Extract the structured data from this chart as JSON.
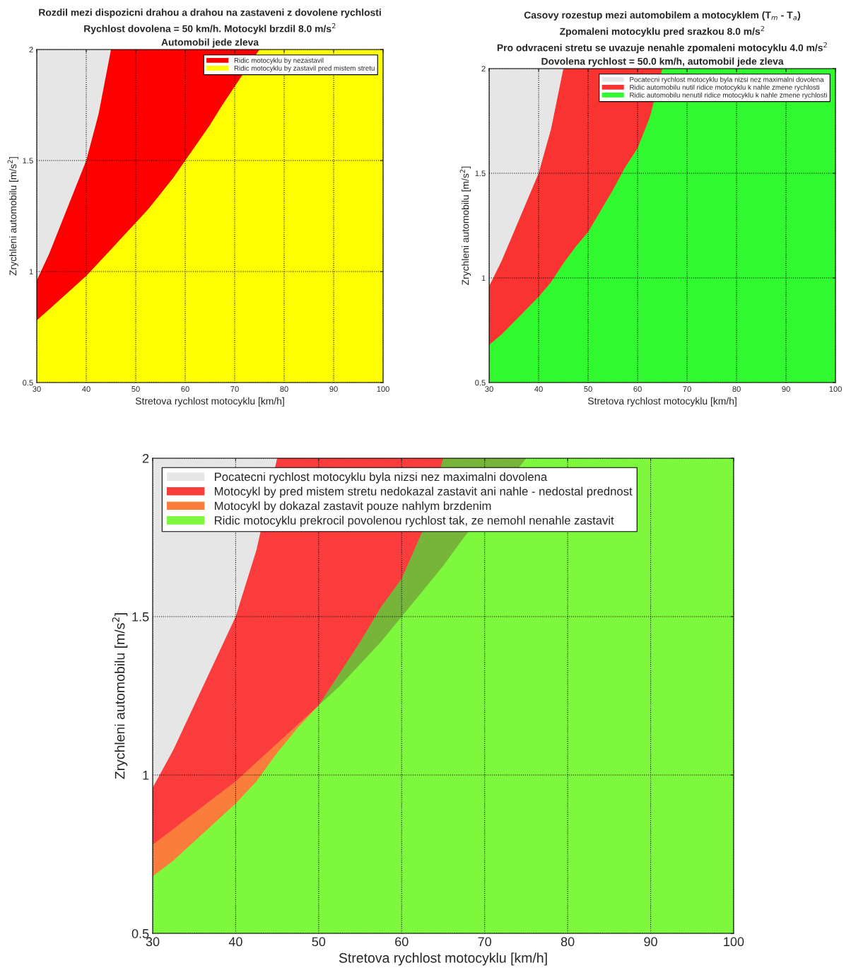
{
  "chart_data": [
    {
      "type": "area",
      "title": "Rozdil mezi dispozicni drahou a drahou na zastaveni z dovolene rychlosti\nRychlost dovolena = 50 km/h. Motocykl brzdil 8.0 m/s$^{2}$\nAutomobil jede zleva",
      "xlabel": "Stretova rychlost motocyklu [km/h]",
      "ylabel": "Zrychleni automobilu [m/s$^{2}$]",
      "x": [
        30,
        32.5,
        35,
        37.5,
        40,
        42.5,
        45,
        47.5,
        50,
        52.5,
        55,
        57.5,
        60,
        62.5,
        65,
        67.5,
        70,
        72.5,
        75,
        77.5,
        80,
        82.5,
        85,
        87.5,
        90,
        92.5,
        95,
        97.5,
        100
      ],
      "series": [
        {
          "color": "#e6e6e6",
          "values": [
            2,
            2,
            2,
            2,
            2,
            2,
            2,
            null,
            null,
            null,
            null,
            null,
            null,
            null,
            null,
            null,
            null,
            null,
            null,
            null,
            null,
            null,
            null,
            null,
            null,
            null,
            null,
            null,
            null
          ]
        },
        {
          "name": "Ridic motocyklu by nezastavil",
          "color": "#ff0000",
          "values": [
            0.96,
            1.08,
            1.22,
            1.36,
            1.5,
            1.71,
            2,
            2,
            2,
            2,
            2,
            2,
            2,
            2,
            2,
            2,
            2,
            2,
            2,
            null,
            null,
            null,
            null,
            null,
            null,
            null,
            null,
            null,
            null
          ]
        },
        {
          "name": "Ridic motocyklu by zastavil pred mistem stretu",
          "color": "#ffff00",
          "values": [
            0.78,
            0.83,
            0.88,
            0.93,
            0.98,
            1.04,
            1.1,
            1.16,
            1.22,
            1.28,
            1.35,
            1.42,
            1.5,
            1.58,
            1.66,
            1.75,
            null,
            null,
            2,
            2,
            2,
            2,
            2,
            2,
            2,
            2,
            2,
            2,
            2
          ]
        }
      ],
      "xlim": [
        30,
        100
      ],
      "ylim": [
        0.5,
        2
      ],
      "xticks": [
        30,
        40,
        50,
        60,
        70,
        80,
        90,
        100
      ],
      "yticks": [
        0.5,
        1,
        1.5,
        2
      ],
      "grid": true,
      "legend": "top right"
    },
    {
      "type": "area",
      "title": "Casovy rozestup mezi automobilem a motocyklem (T$_{m}$ - T$_{a}$)\nZpomaleni motocyklu pred srazkou 8.0 m/s$^{2}$\nPro odvraceni stretu se uvazuje nenahle zpomaleni motocyklu 4.0 m/s$^{2}$\nDovolena rychlost = 50.0 km/h, automobil jede zleva",
      "xlabel": "Stretova rychlost motocyklu [km/h]",
      "ylabel": "Zrychleni automobilu [m/s$^{2}$]",
      "x": [
        30,
        32.5,
        35,
        37.5,
        40,
        42.5,
        45,
        47.5,
        50,
        52.5,
        55,
        57.5,
        60,
        62.5,
        65,
        67.5,
        70,
        72.5,
        75,
        77.5,
        80,
        82.5,
        85,
        87.5,
        90,
        92.5,
        95,
        97.5,
        100
      ],
      "series": [
        {
          "name": "Pocatecni rychlost motocyklu byla nizsi nez maximalni dovolena",
          "color": "#e6e6e6",
          "values": [
            2,
            2,
            2,
            2,
            2,
            2,
            2,
            null,
            null,
            null,
            null,
            null,
            null,
            null,
            null,
            null,
            null,
            null,
            null,
            null,
            null,
            null,
            null,
            null,
            null,
            null,
            null,
            null,
            null
          ]
        },
        {
          "name": "Ridic automobilu nutil ridice motocyklu k nahle zmene rychlosti",
          "color": "#f93232",
          "values": [
            0.96,
            1.08,
            1.22,
            1.36,
            1.5,
            1.71,
            2,
            2,
            2,
            2,
            2,
            2,
            2,
            2,
            2,
            null,
            null,
            null,
            null,
            null,
            null,
            null,
            null,
            null,
            null,
            null,
            null,
            null,
            null
          ]
        },
        {
          "name": "Ridic automobilu nenutil ridice motocyklu k nahle zmene rychlosti",
          "color": "#30f930",
          "values": [
            0.68,
            0.73,
            0.79,
            0.85,
            0.91,
            0.98,
            1.07,
            1.15,
            1.22,
            1.32,
            1.42,
            1.53,
            1.62,
            1.77,
            2,
            2,
            2,
            2,
            2,
            2,
            2,
            2,
            2,
            2,
            2,
            2,
            2,
            2,
            2
          ]
        }
      ],
      "xlim": [
        30,
        100
      ],
      "ylim": [
        0.5,
        2
      ],
      "xticks": [
        30,
        40,
        50,
        60,
        70,
        80,
        90,
        100
      ],
      "yticks": [
        0.5,
        1,
        1.5,
        2
      ],
      "grid": true,
      "legend": "top right"
    },
    {
      "type": "area",
      "xlabel": "Stretova rychlost motocyklu [km/h]",
      "ylabel": "Zrychleni automobilu [m/s$^{2}$]",
      "x": [
        30,
        32.5,
        35,
        37.5,
        40,
        42.5,
        45,
        47.5,
        50,
        52.5,
        55,
        57.5,
        60,
        62.5,
        65,
        67.5,
        70,
        72.5,
        75,
        77.5,
        80,
        82.5,
        85,
        87.5,
        90,
        92.5,
        95,
        97.5,
        100
      ],
      "series": [
        {
          "name": "Pocatecni rychlost motocyklu byla nizsi nez maximalni dovolena",
          "color": "#e6e6e6",
          "values": [
            2,
            2,
            2,
            2,
            2,
            2,
            2,
            null,
            null,
            null,
            null,
            null,
            null,
            null,
            null,
            null,
            null,
            null,
            null,
            null,
            null,
            null,
            null,
            null,
            null,
            null,
            null,
            null,
            null
          ]
        },
        {
          "name": "Motocykl by pred mistem stretu nedokazal zastavit ani nahle - nedostal prednost",
          "color": "#fa3c3c",
          "values": [
            0.96,
            1.08,
            1.22,
            1.36,
            1.5,
            1.71,
            2,
            2,
            2,
            2,
            2,
            2,
            2,
            2,
            2,
            null,
            null,
            null,
            null,
            null,
            null,
            null,
            null,
            null,
            null,
            null,
            null,
            null,
            null
          ]
        },
        {
          "color": "#77b43a",
          "values": [
            null,
            null,
            null,
            null,
            null,
            null,
            null,
            null,
            1.22,
            1.32,
            1.42,
            1.53,
            1.62,
            1.77,
            2,
            2,
            2,
            2,
            2,
            null,
            null,
            null,
            null,
            null,
            null,
            null,
            null,
            null,
            null
          ]
        },
        {
          "name": "Motocykl by dokazal zastavit pouze nahlym brzdenim",
          "color": "#fa7d3c",
          "values": [
            0.78,
            0.83,
            0.88,
            0.93,
            0.98,
            1.04,
            1.1,
            1.16,
            1.22,
            null,
            null,
            null,
            null,
            null,
            null,
            null,
            null,
            null,
            null,
            null,
            null,
            null,
            null,
            null,
            null,
            null,
            null,
            null,
            null
          ]
        },
        {
          "name": "Ridic motocyklu prekrocil povolenou rychlost tak, ze nemohl nenahle zastavit",
          "color": "#7ef83c",
          "values": [
            0.68,
            0.73,
            0.79,
            0.85,
            0.91,
            0.98,
            1.07,
            1.15,
            1.22,
            1.28,
            1.35,
            1.42,
            1.5,
            1.58,
            1.66,
            1.75,
            null,
            null,
            2,
            2,
            2,
            2,
            2,
            2,
            2,
            2,
            2,
            2,
            2
          ]
        }
      ],
      "xlim": [
        30,
        100
      ],
      "ylim": [
        0.5,
        2
      ],
      "xticks": [
        30,
        40,
        50,
        60,
        70,
        80,
        90,
        100
      ],
      "yticks": [
        0.5,
        1,
        1.5,
        2
      ],
      "grid": true,
      "legend": "top left"
    }
  ]
}
